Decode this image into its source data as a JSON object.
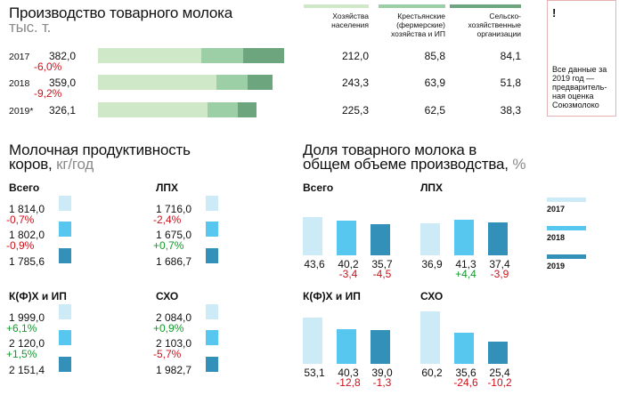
{
  "colors": {
    "households": "#cfe8c8",
    "farms": "#9ccfa5",
    "agri_orgs": "#6da57f",
    "y2017": "#cdeaf7",
    "y2018": "#58c7ef",
    "y2019": "#3390b8",
    "red": "#d0101a",
    "green": "#149a2c"
  },
  "chart_data": [
    {
      "type": "bar",
      "title": "Производство товарного молока",
      "unit": "тыс. т.",
      "categories": [
        "2017",
        "2018",
        "2019*"
      ],
      "totals": [
        382.0,
        359.0,
        326.1
      ],
      "totals_text": [
        "382,0",
        "359,0",
        "326,1"
      ],
      "changes": [
        "-6,0%",
        "-9,2%"
      ],
      "stacked": true,
      "series": [
        {
          "name": "Хозяйства населения",
          "values": [
            212.0,
            243.3,
            225.3
          ],
          "texts": [
            "212,0",
            "243,3",
            "225,3"
          ]
        },
        {
          "name": "Крестьянские (фермерские) хозяйства и ИП",
          "values": [
            85.8,
            63.9,
            62.5
          ],
          "texts": [
            "85,8",
            "63,9",
            "62,5"
          ]
        },
        {
          "name": "Сельско-хозяйственные организации",
          "values": [
            84.1,
            51.8,
            38.3
          ],
          "texts": [
            "84,1",
            "51,8",
            "38,3"
          ]
        }
      ]
    },
    {
      "type": "bar",
      "title": "Молочная продуктивность коров,",
      "unit": "кг/год",
      "years": [
        "2017",
        "2018",
        "2019"
      ],
      "groups": [
        {
          "name": "Всего",
          "values": [
            1814.0,
            1802.0,
            1785.6
          ],
          "texts": [
            "1 814,0",
            "1 802,0",
            "1 785,6"
          ],
          "changes": [
            "-0,7%",
            "-0,9%"
          ]
        },
        {
          "name": "ЛПХ",
          "values": [
            1716.0,
            1675.0,
            1686.7
          ],
          "texts": [
            "1 716,0",
            "1 675,0",
            "1 686,7"
          ],
          "changes": [
            "-2,4%",
            "+0,7%"
          ]
        },
        {
          "name": "К(Ф)Х и ИП",
          "values": [
            1999.0,
            2120.0,
            2151.4
          ],
          "texts": [
            "1 999,0",
            "2 120,0",
            "2 151,4"
          ],
          "changes": [
            "+6,1%",
            "+1,5%"
          ]
        },
        {
          "name": "СХО",
          "values": [
            2084.0,
            2103.0,
            1982.7
          ],
          "texts": [
            "2 084,0",
            "2 103,0",
            "1 982,7"
          ],
          "changes": [
            "+0,9%",
            "-5,7%"
          ]
        }
      ]
    },
    {
      "type": "bar",
      "title": "Доля товарного молока в общем объеме производства,",
      "unit": "%",
      "years": [
        "2017",
        "2018",
        "2019"
      ],
      "groups": [
        {
          "name": "Всего",
          "values": [
            43.6,
            40.2,
            35.7
          ],
          "texts": [
            "43,6",
            "40,2",
            "35,7"
          ],
          "changes": [
            "-3,4",
            "-4,5"
          ]
        },
        {
          "name": "ЛПХ",
          "values": [
            36.9,
            41.3,
            37.4
          ],
          "texts": [
            "36,9",
            "41,3",
            "37,4"
          ],
          "changes": [
            "+4,4",
            "-3,9"
          ]
        },
        {
          "name": "К(Ф)Х и ИП",
          "values": [
            53.1,
            40.3,
            39.0
          ],
          "texts": [
            "53,1",
            "40,3",
            "39,0"
          ],
          "changes": [
            "-12,8",
            "-1,3"
          ]
        },
        {
          "name": "СХО",
          "values": [
            60.2,
            35.6,
            25.4
          ],
          "texts": [
            "60,2",
            "35,6",
            "25,4"
          ],
          "changes": [
            "-24,6",
            "-10,2"
          ]
        }
      ]
    }
  ],
  "note": {
    "mark": "!",
    "text": "Все данные за 2019 год — предваритель-ная оценка Союзмолоко"
  }
}
